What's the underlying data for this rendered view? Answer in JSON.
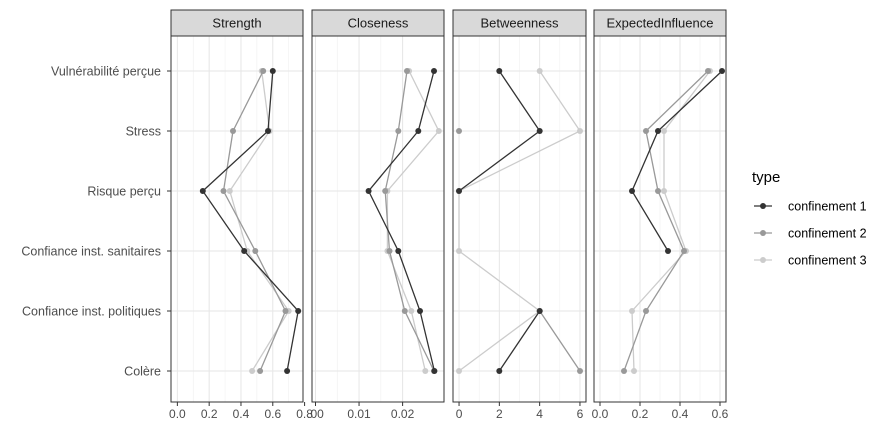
{
  "chart_data": {
    "type": "line",
    "layout": "faceted-centrality-plot",
    "categories": [
      "Vulnérabilité perçue",
      "Stress",
      "Risque perçu",
      "Confiance inst. sanitaires",
      "Confiance inst. politiques",
      "Colère"
    ],
    "facets": [
      {
        "title": "Strength",
        "xlim": [
          -0.04,
          0.79
        ],
        "ticks": [
          0.0,
          0.2,
          0.4,
          0.6,
          0.8
        ],
        "tick_labels": [
          "0.0",
          "0.2",
          "0.4",
          "0.6",
          "0.8"
        ],
        "series": [
          {
            "name": "confinement 1",
            "values": [
              0.6,
              0.57,
              0.16,
              0.42,
              0.76,
              0.69
            ]
          },
          {
            "name": "confinement 2",
            "values": [
              0.54,
              0.35,
              0.29,
              0.49,
              0.68,
              0.52
            ]
          },
          {
            "name": "confinement 3",
            "values": [
              0.53,
              0.58,
              0.33,
              0.44,
              0.7,
              0.47
            ]
          }
        ]
      },
      {
        "title": "Closeness",
        "xlim": [
          -0.0008,
          0.0295
        ],
        "ticks": [
          0.0,
          0.01,
          0.02
        ],
        "tick_labels": [
          ".00",
          "0.01",
          "0.02"
        ],
        "series": [
          {
            "name": "confinement 1",
            "values": [
              0.0272,
              0.0236,
              0.0122,
              0.019,
              0.024,
              0.0273
            ]
          },
          {
            "name": "confinement 2",
            "values": [
              0.021,
              0.019,
              0.016,
              0.017,
              0.0205,
              0.0272
            ]
          },
          {
            "name": "confinement 3",
            "values": [
              0.0215,
              0.0283,
              0.0165,
              0.0165,
              0.022,
              0.0252
            ]
          }
        ]
      },
      {
        "title": "Betweenness",
        "xlim": [
          -0.3,
          6.3
        ],
        "ticks": [
          0,
          2,
          4,
          6
        ],
        "tick_labels": [
          "0",
          "2",
          "4",
          "6"
        ],
        "series": [
          {
            "name": "confinement 1",
            "values": [
              2,
              4,
              0,
              null,
              4,
              2
            ]
          },
          {
            "name": "confinement 2",
            "values": [
              null,
              0,
              null,
              null,
              4,
              6
            ]
          },
          {
            "name": "confinement 3",
            "values": [
              4,
              6,
              0,
              0,
              4,
              0
            ]
          }
        ]
      },
      {
        "title": "ExpectedInfluence",
        "xlim": [
          -0.03,
          0.63
        ],
        "ticks": [
          0.0,
          0.2,
          0.4,
          0.6
        ],
        "tick_labels": [
          "0.0",
          "0.2",
          "0.4",
          "0.6"
        ],
        "series": [
          {
            "name": "confinement 1",
            "values": [
              0.61,
              0.29,
              0.16,
              0.34,
              null,
              null
            ]
          },
          {
            "name": "confinement 2",
            "values": [
              0.54,
              0.23,
              0.29,
              0.42,
              0.23,
              0.12
            ]
          },
          {
            "name": "confinement 3",
            "values": [
              0.55,
              0.32,
              0.32,
              0.43,
              0.16,
              0.17
            ]
          }
        ]
      }
    ],
    "legend": {
      "title": "type",
      "position": "right",
      "entries": [
        "confinement 1",
        "confinement 2",
        "confinement 3"
      ]
    },
    "colors": {
      "confinement 1": "#333333",
      "confinement 2": "#999999",
      "confinement 3": "#cccccc"
    },
    "grid": true
  }
}
